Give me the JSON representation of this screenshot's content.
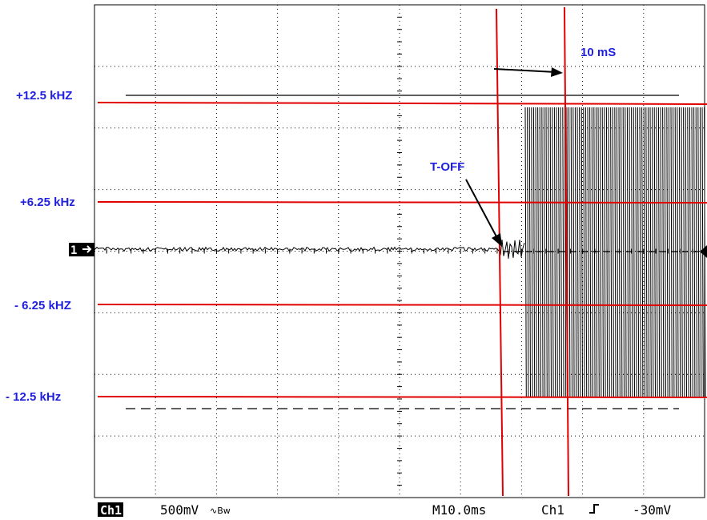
{
  "chart_data": {
    "type": "line",
    "title": "",
    "annotations": {
      "freq_levels": [
        {
          "label": "+12.5 kHZ"
        },
        {
          "label": "+6.25 kHz"
        },
        {
          "label": "- 6.25 kHZ"
        },
        {
          "label": "- 12.5 kHz"
        }
      ],
      "t_off_label": "T-OFF",
      "interval_label": "10 mS"
    },
    "channel_marker": "1",
    "status_bar": {
      "channel": "Ch1",
      "scale": "500mV",
      "coupling_symbol": "∿Bw",
      "timebase": "M10.0ms",
      "trigger_channel": "Ch1",
      "trigger_slope": "ʃ",
      "trigger_level": "-30mV"
    },
    "colors": {
      "annotation_lines": "#e00000",
      "annotation_text": "#1f1fe0",
      "trace": "#000000",
      "grid": "#000000"
    },
    "grid": true,
    "grid_divisions": {
      "x": 10,
      "y": 8
    }
  }
}
